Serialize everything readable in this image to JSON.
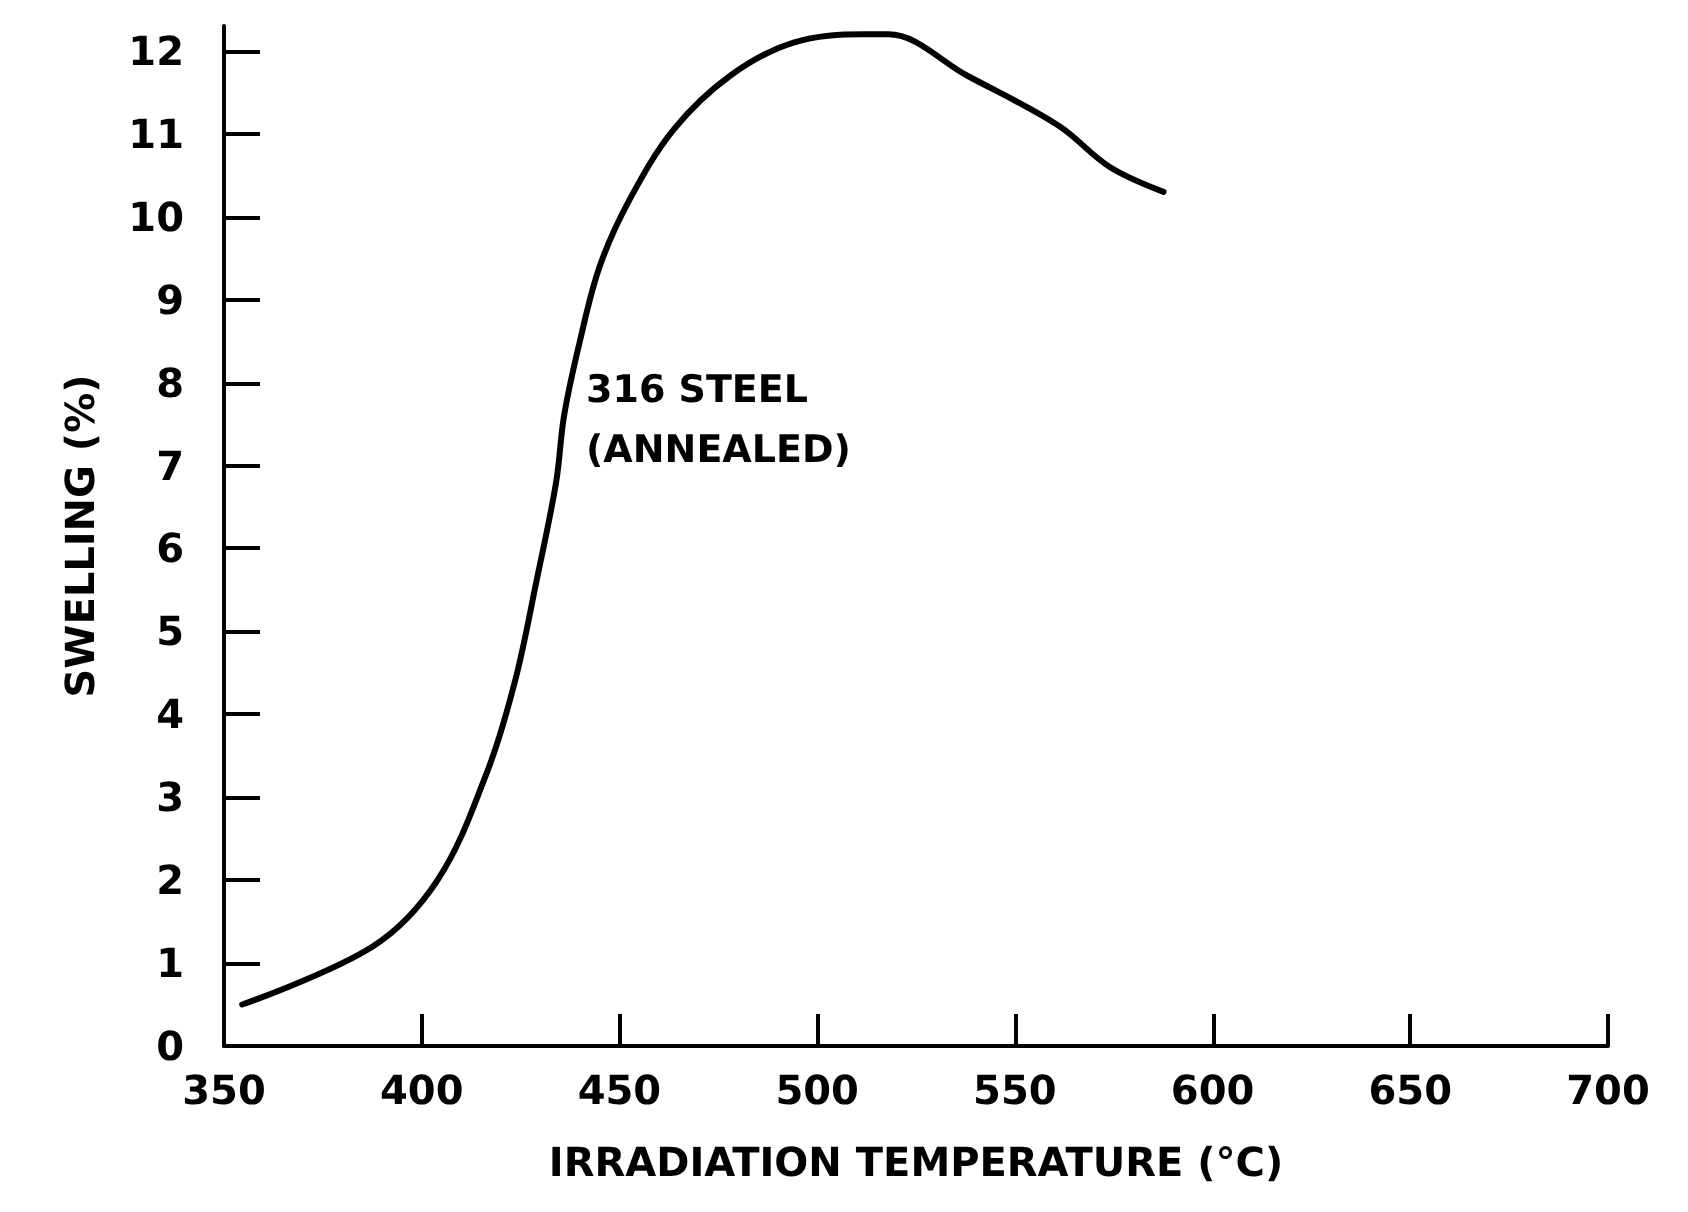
{
  "chart_data": {
    "type": "line",
    "xlabel": "IRRADIATION TEMPERATURE (°C)",
    "ylabel": "SWELLING (%)",
    "x": [
      354.6,
      387.6,
      404,
      416.5,
      423.6,
      429,
      434,
      436,
      440,
      445,
      452.5,
      463.7,
      478,
      494,
      512,
      518,
      538,
      561,
      574,
      587.6
    ],
    "series": [
      {
        "color": "#000000",
        "values": [
          0.5,
          1.2,
          2.0,
          3.3,
          4.4,
          5.6,
          6.8,
          7.6,
          8.5,
          9.4,
          10.2,
          11.05,
          11.7,
          12.1,
          12.2,
          12.2,
          11.7,
          11.1,
          10.6,
          10.3
        ]
      }
    ],
    "xlim": [
      350,
      700
    ],
    "xticks": [
      350,
      400,
      450,
      500,
      550,
      600,
      650,
      700
    ],
    "ylim": [
      0,
      12.3
    ],
    "yticks": [
      0,
      1,
      2,
      3,
      4,
      5,
      6,
      7,
      8,
      9,
      10,
      11,
      12
    ],
    "annotations": [
      "316 STEEL\n(ANNEALED)"
    ],
    "grid": false,
    "marker": "none",
    "line_style": "solid"
  }
}
